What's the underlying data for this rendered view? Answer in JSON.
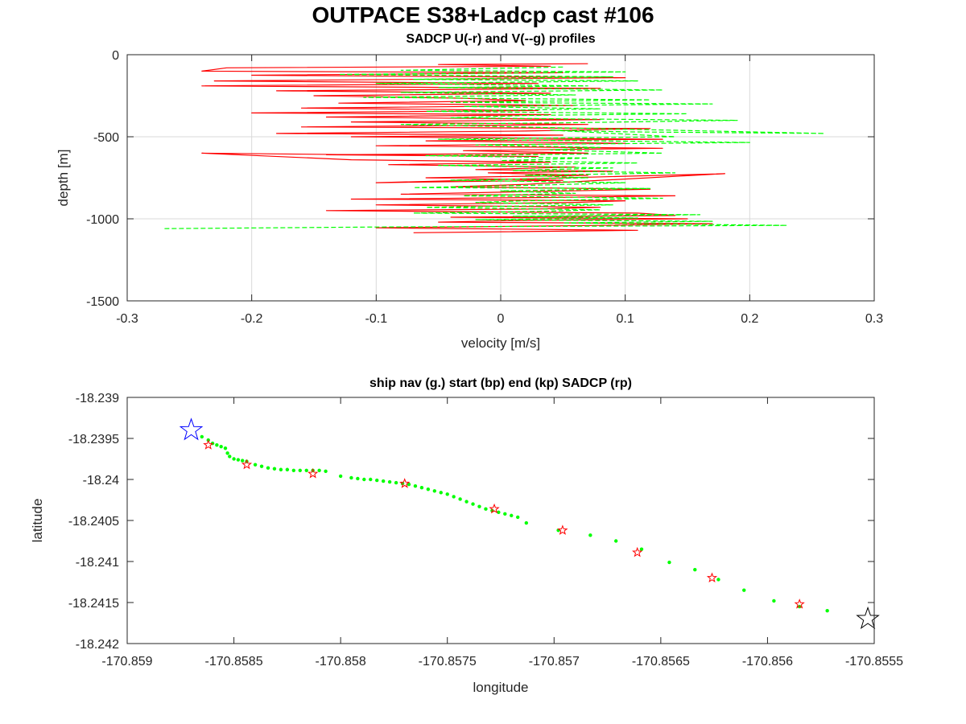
{
  "figure_title": "OUTPACE S38+Ladcp cast #106",
  "colors": {
    "u": "#ff0000",
    "v": "#00ff00",
    "nav": "#00ff00",
    "start": "#0000ff",
    "end": "#000000",
    "sadcp": "#ff0000",
    "grid": "#d9d9d9"
  },
  "chart_data": [
    {
      "type": "line",
      "title": "SADCP U(-r) and V(--g) profiles",
      "xlabel": "velocity [m/s]",
      "ylabel": "depth [m]",
      "xlim": [
        -0.3,
        0.3
      ],
      "ylim": [
        -1500,
        0
      ],
      "xticks": [
        -0.3,
        -0.2,
        -0.1,
        0,
        0.1,
        0.2,
        0.3
      ],
      "xtick_labels": [
        "-0.3",
        "-0.2",
        "-0.1",
        "0",
        "0.1",
        "0.2",
        "0.3"
      ],
      "yticks": [
        0,
        -500,
        -1000,
        -1500
      ],
      "ytick_labels": [
        "0",
        "-500",
        "-1000",
        "-1500"
      ],
      "grid": true,
      "series": [
        {
          "name": "U",
          "style": "solid",
          "color": "#ff0000",
          "x": [
            0.07,
            -0.05,
            0.04,
            -0.22,
            -0.24,
            0.05,
            -0.2,
            0.1,
            -0.23,
            0.03,
            -0.24,
            0.08,
            -0.18,
            0.04,
            -0.15,
            -0.03,
            0.02,
            -0.13,
            0.06,
            -0.16,
            0.03,
            -0.2,
            0.04,
            -0.14,
            0.08,
            -0.12,
            0.07,
            -0.16,
            0.12,
            0.02,
            -0.18,
            0.05,
            -0.12,
            0.13,
            -0.06,
            0.1,
            -0.1,
            0.13,
            -0.03,
            0.07,
            -0.14,
            0.03,
            -0.24,
            -0.12,
            0.04,
            -0.09,
            0.06,
            -0.02,
            0.09,
            -0.01,
            0.07,
            -0.06,
            0.05,
            -0.1,
            0.18,
            0.02,
            -0.04,
            0.12,
            0.02,
            -0.08,
            0.14,
            0.04,
            -0.12,
            0.1,
            0.06,
            -0.1,
            0.08,
            0.03,
            -0.14,
            0.11,
            0.14,
            -0.04,
            0.15,
            0.02,
            -0.05,
            0.17,
            0.08,
            -0.1,
            0.11,
            -0.07
          ],
          "y": [
            -55,
            -60,
            -70,
            -80,
            -100,
            -110,
            -125,
            -140,
            -160,
            -175,
            -190,
            -205,
            -220,
            -235,
            -250,
            -265,
            -280,
            -295,
            -310,
            -325,
            -340,
            -355,
            -365,
            -380,
            -395,
            -410,
            -425,
            -440,
            -450,
            -465,
            -480,
            -490,
            -500,
            -515,
            -525,
            -540,
            -555,
            -570,
            -585,
            -600,
            -610,
            -620,
            -600,
            -640,
            -655,
            -670,
            -685,
            -700,
            -710,
            -720,
            -735,
            -750,
            -765,
            -780,
            -725,
            -790,
            -805,
            -820,
            -835,
            -850,
            -860,
            -870,
            -880,
            -890,
            -900,
            -915,
            -930,
            -940,
            -950,
            -965,
            -980,
            -990,
            -1000,
            -1010,
            -1020,
            -1030,
            -1040,
            -1055,
            -1070,
            -1085
          ]
        },
        {
          "name": "V",
          "style": "dashed",
          "color": "#00ff00",
          "x": [
            0.05,
            -0.08,
            0.1,
            -0.13,
            0.09,
            -0.07,
            0.11,
            -0.1,
            0.07,
            -0.05,
            0.13,
            -0.08,
            0.06,
            -0.11,
            0.12,
            -0.04,
            0.17,
            -0.03,
            0.08,
            -0.06,
            0.15,
            0.02,
            -0.04,
            0.19,
            0.05,
            -0.08,
            0.26,
            0.1,
            0.04,
            0.14,
            -0.05,
            0.2,
            -0.02,
            0.08,
            0.04,
            0.13,
            -0.06,
            0.07,
            0.0,
            0.11,
            -0.05,
            0.09,
            0.01,
            0.14,
            0.02,
            0.07,
            -0.04,
            0.1,
            0.03,
            -0.07,
            0.12,
            0.0,
            0.06,
            -0.03,
            0.13,
            0.02,
            -0.02,
            0.09,
            -0.06,
            0.08,
            0.03,
            -0.07,
            0.16,
            0.01,
            0.11,
            -0.02,
            0.17,
            0.05,
            0.23,
            -0.1,
            -0.27
          ],
          "y": [
            -75,
            -95,
            -105,
            -120,
            -135,
            -150,
            -160,
            -175,
            -190,
            -200,
            -215,
            -230,
            -245,
            -260,
            -275,
            -290,
            -300,
            -315,
            -330,
            -345,
            -360,
            -370,
            -385,
            -400,
            -415,
            -425,
            -480,
            -470,
            -460,
            -500,
            -515,
            -535,
            -550,
            -565,
            -580,
            -600,
            -615,
            -630,
            -645,
            -660,
            -675,
            -690,
            -705,
            -720,
            -735,
            -750,
            -765,
            -780,
            -795,
            -810,
            -815,
            -830,
            -845,
            -860,
            -875,
            -890,
            -900,
            -915,
            -930,
            -945,
            -955,
            -965,
            -975,
            -985,
            -995,
            -1005,
            -1015,
            -1025,
            -1040,
            -1050,
            -1060
          ]
        }
      ]
    },
    {
      "type": "scatter",
      "title": "ship nav (g.) start (bp) end (kp) SADCP (rp)",
      "xlabel": "longitude",
      "ylabel": "latitude",
      "xlim": [
        -170.859,
        -170.8555
      ],
      "ylim": [
        -18.242,
        -18.239
      ],
      "xticks": [
        -170.859,
        -170.8585,
        -170.858,
        -170.8575,
        -170.857,
        -170.8565,
        -170.856,
        -170.8555
      ],
      "xtick_labels": [
        "-170.859",
        "-170.8585",
        "-170.858",
        "-170.8575",
        "-170.857",
        "-170.8565",
        "-170.856",
        "-170.8555"
      ],
      "yticks": [
        -18.239,
        -18.2395,
        -18.24,
        -18.2405,
        -18.241,
        -18.2415,
        -18.242
      ],
      "ytick_labels": [
        "-18.239",
        "-18.2395",
        "-18.24",
        "-18.2405",
        "-18.241",
        "-18.2415",
        "-18.242"
      ],
      "grid": false,
      "nav_points": [
        [
          -170.85865,
          -18.23948
        ],
        [
          -170.85862,
          -18.23952
        ],
        [
          -170.8586,
          -18.23956
        ],
        [
          -170.85858,
          -18.23958
        ],
        [
          -170.85856,
          -18.2396
        ],
        [
          -170.85854,
          -18.23962
        ],
        [
          -170.85853,
          -18.23968
        ],
        [
          -170.85852,
          -18.23972
        ],
        [
          -170.8585,
          -18.23975
        ],
        [
          -170.85848,
          -18.23976
        ],
        [
          -170.85846,
          -18.23977
        ],
        [
          -170.85844,
          -18.23978
        ],
        [
          -170.8584,
          -18.23982
        ],
        [
          -170.85837,
          -18.23984
        ],
        [
          -170.85834,
          -18.23986
        ],
        [
          -170.85831,
          -18.23987
        ],
        [
          -170.85828,
          -18.23988
        ],
        [
          -170.85825,
          -18.23988
        ],
        [
          -170.85822,
          -18.23989
        ],
        [
          -170.85819,
          -18.23989
        ],
        [
          -170.85816,
          -18.23989
        ],
        [
          -170.85813,
          -18.23989
        ],
        [
          -170.8581,
          -18.23989
        ],
        [
          -170.85807,
          -18.2399
        ],
        [
          -170.858,
          -18.23996
        ],
        [
          -170.85795,
          -18.23998
        ],
        [
          -170.85792,
          -18.23999
        ],
        [
          -170.85789,
          -18.24
        ],
        [
          -170.85786,
          -18.24
        ],
        [
          -170.85783,
          -18.24001
        ],
        [
          -170.8578,
          -18.24002
        ],
        [
          -170.85777,
          -18.24003
        ],
        [
          -170.85774,
          -18.24004
        ],
        [
          -170.85771,
          -18.24005
        ],
        [
          -170.85768,
          -18.24006
        ],
        [
          -170.85765,
          -18.24008
        ],
        [
          -170.85762,
          -18.2401
        ],
        [
          -170.85759,
          -18.24012
        ],
        [
          -170.85756,
          -18.24014
        ],
        [
          -170.85753,
          -18.24016
        ],
        [
          -170.8575,
          -18.24018
        ],
        [
          -170.85747,
          -18.24021
        ],
        [
          -170.85744,
          -18.24024
        ],
        [
          -170.85741,
          -18.24027
        ],
        [
          -170.85738,
          -18.2403
        ],
        [
          -170.85735,
          -18.24033
        ],
        [
          -170.85732,
          -18.24036
        ],
        [
          -170.85729,
          -18.24038
        ],
        [
          -170.85726,
          -18.2404
        ],
        [
          -170.85723,
          -18.24042
        ],
        [
          -170.8572,
          -18.24044
        ],
        [
          -170.85717,
          -18.24046
        ],
        [
          -170.85713,
          -18.24053
        ],
        [
          -170.85698,
          -18.24062
        ],
        [
          -170.85683,
          -18.24068
        ],
        [
          -170.85671,
          -18.24075
        ],
        [
          -170.85659,
          -18.24085
        ],
        [
          -170.85646,
          -18.24101
        ],
        [
          -170.85634,
          -18.2411
        ],
        [
          -170.85623,
          -18.24122
        ],
        [
          -170.85611,
          -18.24135
        ],
        [
          -170.85597,
          -18.24148
        ],
        [
          -170.85585,
          -18.24155
        ],
        [
          -170.85572,
          -18.2416
        ]
      ],
      "sadcp_points": [
        [
          -170.85862,
          -18.23958
        ],
        [
          -170.85844,
          -18.23982
        ],
        [
          -170.85813,
          -18.23993
        ],
        [
          -170.8577,
          -18.24005
        ],
        [
          -170.85728,
          -18.24036
        ],
        [
          -170.85696,
          -18.24062
        ],
        [
          -170.85661,
          -18.24089
        ],
        [
          -170.85626,
          -18.2412
        ],
        [
          -170.85585,
          -18.24152
        ]
      ],
      "start_point": [
        -170.8587,
        -18.2394
      ],
      "end_point": [
        -170.85553,
        -18.2417
      ]
    }
  ]
}
